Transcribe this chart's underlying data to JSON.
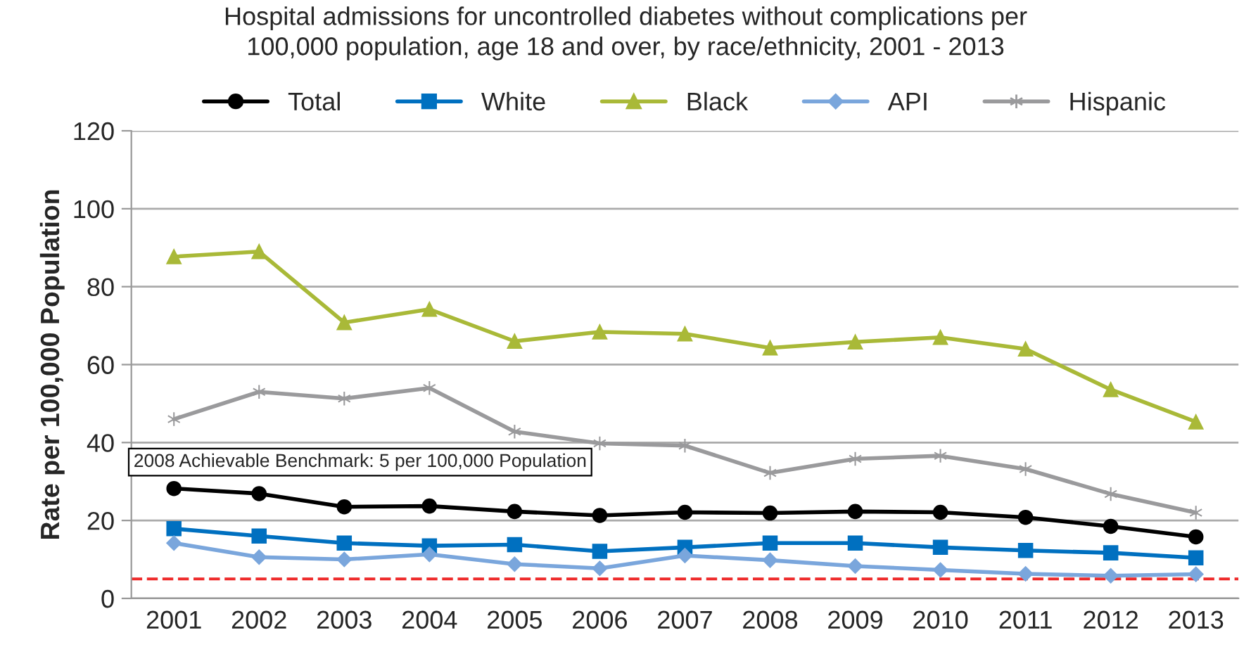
{
  "chart_data": {
    "type": "line",
    "title": "Hospital admissions for uncontrolled diabetes without complications per\n100,000 population, age 18 and over, by race/ethnicity, 2001 - 2013",
    "ylabel": "Rate per 100,000 Population",
    "categories": [
      "2001",
      "2002",
      "2003",
      "2004",
      "2005",
      "2006",
      "2007",
      "2008",
      "2009",
      "2010",
      "2011",
      "2012",
      "2013"
    ],
    "series": [
      {
        "name": "Total",
        "color": "#000000",
        "marker": "circle",
        "values": [
          28.2,
          26.9,
          23.5,
          23.7,
          22.3,
          21.3,
          22.1,
          21.9,
          22.3,
          22.1,
          20.8,
          18.5,
          15.8
        ]
      },
      {
        "name": "White",
        "color": "#0070c0",
        "marker": "square",
        "values": [
          17.9,
          16,
          14.2,
          13.5,
          13.8,
          12.1,
          13.1,
          14.2,
          14.2,
          13.1,
          12.3,
          11.7,
          10.4
        ]
      },
      {
        "name": "Black",
        "color": "#a9b938",
        "marker": "triangle",
        "values": [
          87.7,
          89,
          70.8,
          74.2,
          66,
          68.4,
          67.9,
          64.3,
          65.8,
          67,
          64,
          53.6,
          45.3
        ]
      },
      {
        "name": "API",
        "color": "#7aa6dc",
        "marker": "diamond",
        "values": [
          14.2,
          10.6,
          10,
          11.3,
          8.8,
          7.7,
          11,
          9.8,
          8.3,
          7.3,
          6.3,
          5.8,
          6.2
        ]
      },
      {
        "name": "Hispanic",
        "color": "#9a9a9c",
        "marker": "cross",
        "values": [
          46,
          53,
          51.3,
          54,
          42.8,
          39.8,
          39.2,
          32.2,
          35.8,
          36.6,
          33.2,
          26.8,
          22
        ]
      }
    ],
    "ref_lines": [
      {
        "axis": "y",
        "value": 5,
        "color": "#ee2a2a",
        "line_style": "dashed"
      }
    ],
    "annotations": [
      "2008 Achievable Benchmark: 5 per 100,000 Population"
    ],
    "ylim": [
      0,
      120
    ],
    "yticks": [
      0,
      20,
      40,
      60,
      80,
      100,
      120
    ],
    "grid": "y",
    "legend": "top"
  }
}
